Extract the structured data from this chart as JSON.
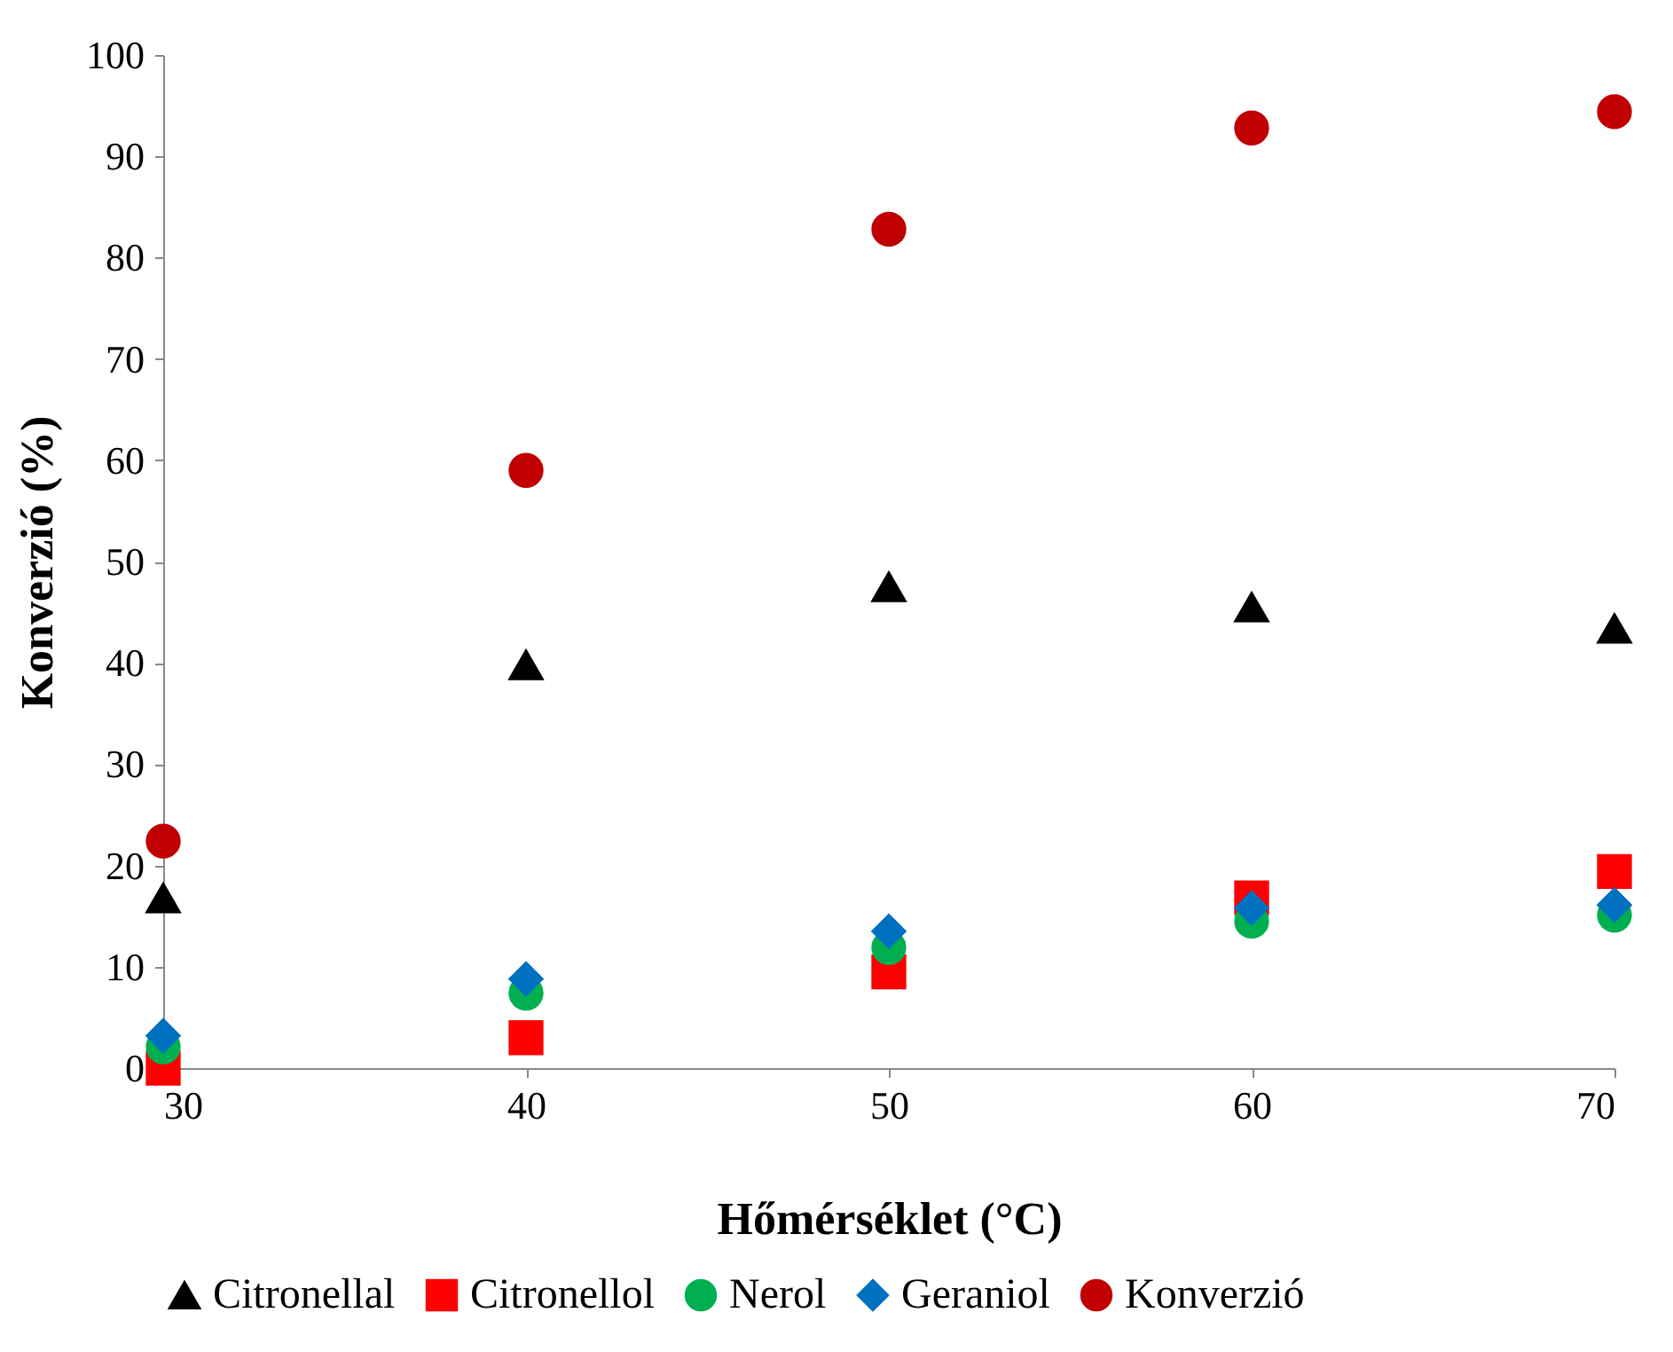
{
  "chart_data": {
    "type": "scatter",
    "xlabel": "Hőmérséklet (°C)",
    "ylabel": "Konverzió (%)",
    "x": [
      30,
      40,
      50,
      60,
      70
    ],
    "series": [
      {
        "name": "Citronellal",
        "color": "#000000",
        "marker": "triangle",
        "values": [
          16.8,
          39.8,
          47.5,
          45.5,
          43.4
        ]
      },
      {
        "name": "Citronellol",
        "color": "#ff0000",
        "marker": "square",
        "values": [
          0,
          3.0,
          9.5,
          16.8,
          19.4
        ]
      },
      {
        "name": "Nerol",
        "color": "#00b050",
        "marker": "circle",
        "values": [
          2.1,
          7.4,
          11.9,
          14.5,
          15.1
        ]
      },
      {
        "name": "Geraniol",
        "color": "#0070c0",
        "marker": "diamond",
        "values": [
          3.2,
          8.8,
          13.5,
          15.8,
          16.1
        ]
      },
      {
        "name": "Konverzió",
        "color": "#c00000",
        "marker": "circle",
        "values": [
          22.4,
          59.0,
          82.8,
          92.8,
          94.4
        ]
      }
    ],
    "xlim": [
      30,
      70
    ],
    "xticks": [
      30,
      40,
      50,
      60,
      70
    ],
    "ylim": [
      0,
      100
    ],
    "yticks": [
      0,
      10,
      20,
      30,
      40,
      50,
      60,
      70,
      80,
      90,
      100
    ],
    "grid": false,
    "legend": "bottom"
  }
}
